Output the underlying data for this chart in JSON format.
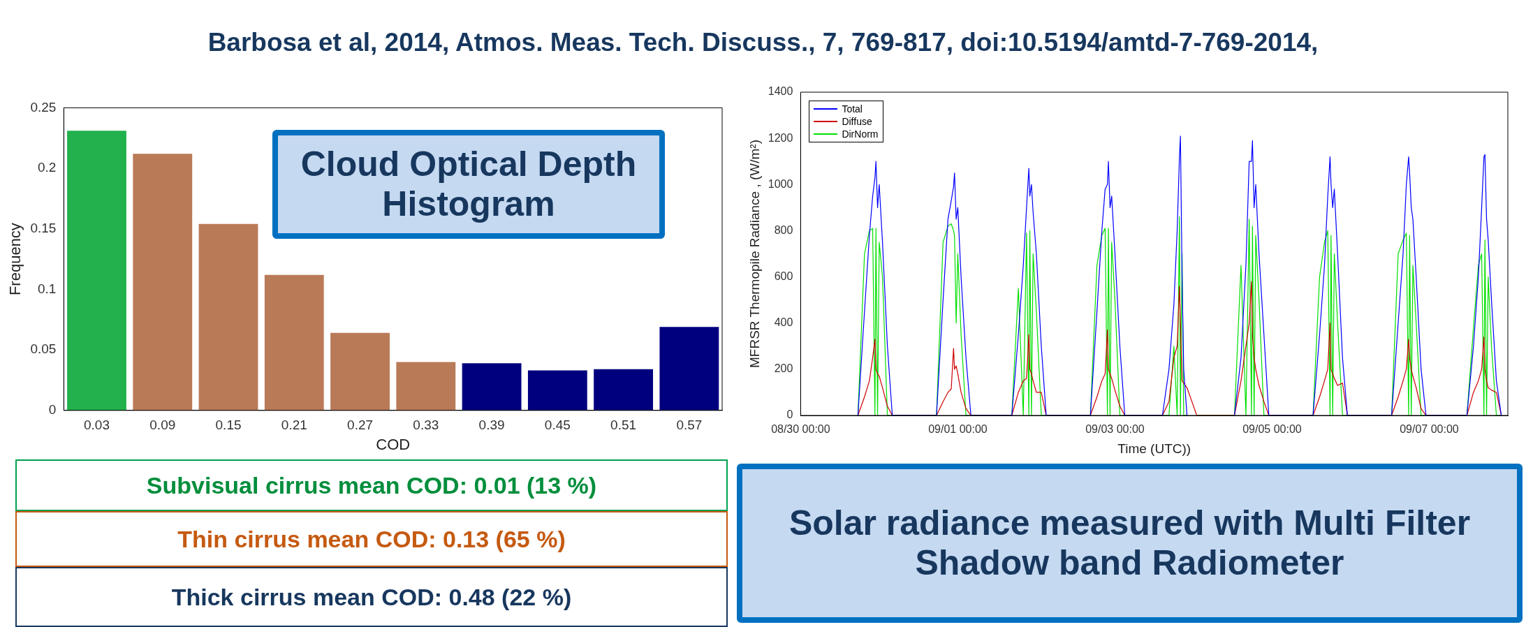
{
  "chart_data": [
    {
      "type": "bar",
      "title": "Cloud Optical Depth Histogram",
      "xlabel": "COD",
      "ylabel": "Frequency",
      "categories": [
        "0.03",
        "0.09",
        "0.15",
        "0.21",
        "0.27",
        "0.33",
        "0.39",
        "0.45",
        "0.51",
        "0.57"
      ],
      "values": [
        0.231,
        0.212,
        0.154,
        0.112,
        0.064,
        0.04,
        0.039,
        0.033,
        0.034,
        0.069
      ],
      "colors": [
        "#22b14c",
        "#b97a57",
        "#b97a57",
        "#b97a57",
        "#b97a57",
        "#b97a57",
        "#00007f",
        "#00007f",
        "#00007f",
        "#00007f"
      ],
      "ylim": [
        0,
        0.25
      ],
      "yticks": [
        0,
        0.05,
        0.1,
        0.15,
        0.2,
        0.25
      ],
      "annotations": [
        "Barbosa et al, 2014, Atmos. Meas. Tech. Discuss., 7, 769-817, doi:10.5194/amtd-7-769-2014,",
        "Subvisual cirrus mean COD: 0.01 (13 %)",
        "Thin cirrus mean COD: 0.13 (65 %)",
        "Thick cirrus mean COD: 0.48 (22 %)"
      ]
    },
    {
      "type": "line",
      "title": "Solar radiance measured with Multi Filter Shadow band Radiometer",
      "xlabel": "Time (UTC))",
      "ylabel": "MFRSR Thermopile Radiance , (W/m²)",
      "xlim": [
        "--08-30",
        "--09-08"
      ],
      "xticks": [
        {
          "value": "--08-30",
          "label": "08/30 00:00"
        },
        {
          "value": "--09-01",
          "label": "09/01 00:00"
        },
        {
          "value": "--09-03",
          "label": "09/03 00:00"
        },
        {
          "value": "--09-05",
          "label": "09/05 00:00"
        },
        {
          "value": "--09-07",
          "label": "09/07 00:00"
        }
      ],
      "ylim": [
        0,
        1400
      ],
      "yticks": [
        0,
        200,
        400,
        600,
        800,
        1000,
        1200,
        1400
      ],
      "legend": "top left",
      "marker": "none",
      "x": [
        "--08-30T17:30",
        "--08-30T19:30",
        "--08-30T21:00",
        "--08-30T22:00",
        "--08-30T22:42",
        "--08-30T23:00",
        "--08-30T23:30",
        "--08-31T00:00",
        "--08-31T01:00",
        "--08-31T02:30",
        "--08-31T04:00",
        "--08-31T17:30",
        "--08-31T19:30",
        "--08-31T21:00",
        "--08-31T22:00",
        "--08-31T22:42",
        "--08-31T23:00",
        "--08-31T23:30",
        "--09-01T00:00",
        "--09-01T01:00",
        "--09-01T02:30",
        "--09-01T04:00",
        "--09-01T16:30",
        "--09-01T18:30",
        "--09-01T20:00",
        "--09-01T21:00",
        "--09-01T21:42",
        "--09-01T22:00",
        "--09-01T22:30",
        "--09-01T23:00",
        "--09-02T00:00",
        "--09-02T01:30",
        "--09-02T03:00",
        "--09-02T16:30",
        "--09-02T18:30",
        "--09-02T20:00",
        "--09-02T21:00",
        "--09-02T21:42",
        "--09-02T22:00",
        "--09-02T22:30",
        "--09-02T23:00",
        "--09-03T00:00",
        "--09-03T01:30",
        "--09-03T03:00",
        "--09-03T14:30",
        "--09-03T16:30",
        "--09-03T18:00",
        "--09-03T19:00",
        "--09-03T19:42",
        "--09-03T20:00",
        "--09-03T20:30",
        "--09-03T21:00",
        "--09-03T22:00",
        "--09-03T23:30",
        "--09-04T01:00",
        "--09-04T12:30",
        "--09-04T14:30",
        "--09-04T16:00",
        "--09-04T17:00",
        "--09-04T17:42",
        "--09-04T18:00",
        "--09-04T18:30",
        "--09-04T19:00",
        "--09-04T20:00",
        "--09-04T21:30",
        "--09-04T23:00",
        "--09-05T12:30",
        "--09-05T14:30",
        "--09-05T16:00",
        "--09-05T17:00",
        "--09-05T17:42",
        "--09-05T18:00",
        "--09-05T18:30",
        "--09-05T19:00",
        "--09-05T20:00",
        "--09-05T21:30",
        "--09-05T23:00",
        "--09-06T12:30",
        "--09-06T14:30",
        "--09-06T16:00",
        "--09-06T17:00",
        "--09-06T17:42",
        "--09-06T18:00",
        "--09-06T18:30",
        "--09-06T19:00",
        "--09-06T20:00",
        "--09-06T21:30",
        "--09-06T23:00",
        "--09-07T11:30",
        "--09-07T13:30",
        "--09-07T15:00",
        "--09-07T16:00",
        "--09-07T16:42",
        "--09-07T17:00",
        "--09-07T17:30",
        "--09-07T18:00",
        "--09-07T19:00",
        "--09-07T20:30",
        "--09-07T22:00"
      ],
      "series": [
        {
          "name": "Total",
          "color": "#0000ff",
          "values": [
            0,
            450,
            780,
            950,
            1030,
            1100,
            900,
            1000,
            750,
            300,
            0,
            0,
            500,
            850,
            930,
            990,
            1050,
            850,
            900,
            600,
            250,
            0,
            0,
            350,
            650,
            900,
            1070,
            950,
            1000,
            880,
            700,
            300,
            0,
            0,
            450,
            800,
            980,
            1000,
            1100,
            900,
            950,
            700,
            300,
            0,
            0,
            200,
            480,
            800,
            1120,
            1210,
            600,
            200,
            0,
            null,
            null,
            0,
            250,
            650,
            1100,
            1100,
            1190,
            900,
            1000,
            700,
            350,
            0,
            0,
            350,
            650,
            950,
            1120,
            1000,
            900,
            980,
            700,
            250,
            0,
            0,
            400,
            700,
            1000,
            1120,
            1050,
            900,
            850,
            600,
            200,
            0,
            0,
            300,
            600,
            900,
            1120,
            1130,
            850,
            760,
            500,
            150,
            0
          ]
        },
        {
          "name": "Diffuse",
          "color": "#cc0000",
          "values": [
            0,
            80,
            150,
            250,
            330,
            200,
            180,
            170,
            120,
            40,
            0,
            0,
            60,
            100,
            115,
            290,
            200,
            215,
            180,
            100,
            30,
            0,
            0,
            100,
            150,
            160,
            350,
            200,
            180,
            150,
            100,
            100,
            0,
            0,
            80,
            150,
            180,
            370,
            200,
            180,
            160,
            110,
            40,
            0,
            0,
            60,
            250,
            300,
            560,
            400,
            150,
            140,
            120,
            60,
            0,
            0,
            150,
            300,
            400,
            580,
            350,
            250,
            200,
            130,
            60,
            0,
            0,
            80,
            150,
            200,
            400,
            200,
            180,
            160,
            130,
            140,
            0,
            0,
            80,
            150,
            200,
            330,
            250,
            200,
            170,
            120,
            30,
            0,
            0,
            100,
            150,
            200,
            340,
            200,
            150,
            120,
            110,
            100,
            0
          ]
        },
        {
          "name": "DirNorm",
          "color": "#00e000",
          "values": [
            0,
            700,
            800,
            810,
            0,
            810,
            0,
            750,
            600,
            0,
            0,
            0,
            750,
            820,
            830,
            800,
            780,
            400,
            700,
            350,
            0,
            0,
            0,
            550,
            0,
            790,
            0,
            800,
            0,
            700,
            450,
            0,
            0,
            0,
            650,
            780,
            810,
            0,
            810,
            0,
            750,
            500,
            0,
            0,
            0,
            0,
            300,
            0,
            860,
            0,
            700,
            0,
            0,
            null,
            0,
            0,
            650,
            0,
            850,
            0,
            820,
            0,
            780,
            500,
            0,
            0,
            0,
            600,
            750,
            800,
            0,
            780,
            0,
            700,
            400,
            0,
            0,
            0,
            700,
            760,
            790,
            0,
            780,
            0,
            650,
            400,
            0,
            0,
            0,
            380,
            650,
            700,
            0,
            760,
            0,
            600,
            300,
            0,
            0
          ]
        }
      ]
    }
  ]
}
